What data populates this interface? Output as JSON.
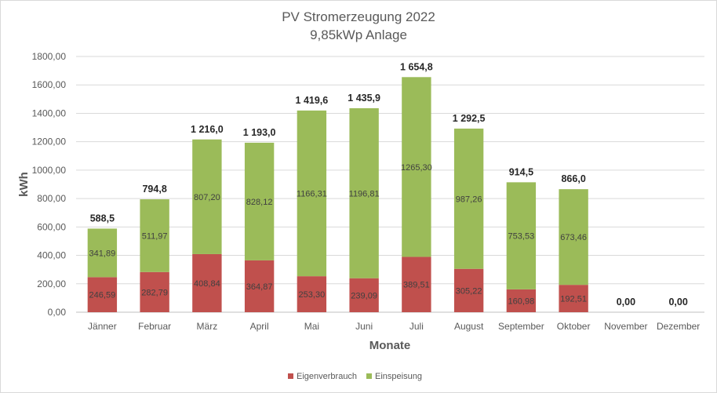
{
  "chart_data": {
    "type": "bar",
    "stacked": true,
    "title": "PV Stromerzeugung 2022",
    "subtitle": "9,85kWp Anlage",
    "xlabel": "Monate",
    "ylabel": "kWh",
    "ylim": [
      0,
      1800
    ],
    "yticks": [
      "0,00",
      "200,00",
      "400,00",
      "600,00",
      "800,00",
      "1000,00",
      "1200,00",
      "1400,00",
      "1600,00",
      "1800,00"
    ],
    "grid": true,
    "legend_position": "bottom",
    "categories": [
      "Jänner",
      "Februar",
      "März",
      "April",
      "Mai",
      "Juni",
      "Juli",
      "August",
      "September",
      "Oktober",
      "November",
      "Dezember"
    ],
    "series": [
      {
        "name": "Eigenverbrauch",
        "color": "#c0504d",
        "values": [
          246.59,
          282.79,
          408.84,
          364.87,
          253.3,
          239.09,
          389.51,
          305.22,
          160.98,
          192.51,
          0,
          0
        ],
        "labels": [
          "246,59",
          "282,79",
          "408,84",
          "364,87",
          "253,30",
          "239,09",
          "389,51",
          "305,22",
          "160,98",
          "192,51",
          "",
          ""
        ]
      },
      {
        "name": "Einspeisung",
        "color": "#9bbb59",
        "values": [
          341.89,
          511.97,
          807.2,
          828.12,
          1166.31,
          1196.81,
          1265.3,
          987.26,
          753.53,
          673.46,
          0,
          0
        ],
        "labels": [
          "341,89",
          "511,97",
          "807,20",
          "828,12",
          "1166,31",
          "1196,81",
          "1265,30",
          "987,26",
          "753,53",
          "673,46",
          "",
          ""
        ]
      }
    ],
    "totals": [
      588.5,
      794.8,
      1216.0,
      1193.0,
      1419.6,
      1435.9,
      1654.8,
      1292.5,
      914.5,
      866.0,
      0,
      0
    ],
    "total_labels": [
      "588,5",
      "794,8",
      "1 216,0",
      "1 193,0",
      "1 419,6",
      "1 435,9",
      "1 654,8",
      "1 292,5",
      "914,5",
      "866,0",
      "0,00",
      "0,00"
    ]
  }
}
